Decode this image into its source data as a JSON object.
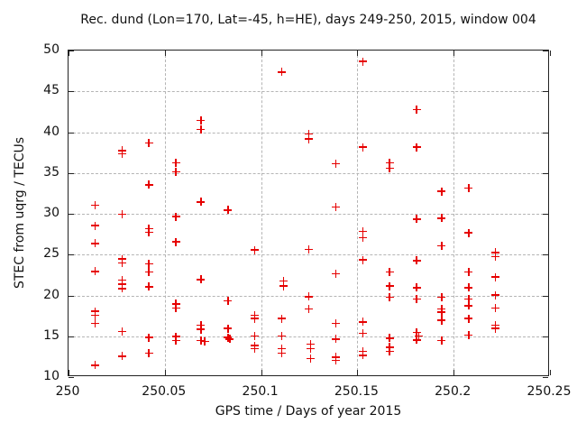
{
  "colors": {
    "marker": "#e60000",
    "grid": "#b5b5b5",
    "axis": "#222222",
    "text": "#111111",
    "background": "#ffffff"
  },
  "chart_data": {
    "type": "scatter",
    "title": "Rec. dund (Lon=170, Lat=-45, h=HE), days 249-250, 2015, window 004",
    "xlabel": "GPS time / Days of year 2015",
    "ylabel": "STEC from uqrg / TECUs",
    "xlim": [
      250,
      250.25
    ],
    "ylim": [
      10,
      50
    ],
    "xticks": [
      250,
      250.05,
      250.1,
      250.15,
      250.2,
      250.25
    ],
    "xtick_labels": [
      "250",
      "250.05",
      "250.1",
      "250.15",
      "250.2",
      "250.25"
    ],
    "yticks": [
      10,
      15,
      20,
      25,
      30,
      35,
      40,
      45,
      50
    ],
    "ytick_labels": [
      "10",
      "15",
      "20",
      "25",
      "30",
      "35",
      "40",
      "45",
      "50"
    ],
    "grid": true,
    "legend": "none",
    "marker": "plus",
    "series": [
      {
        "name": "STEC",
        "color": "#e60000",
        "points": [
          [
            250.014,
            31.0
          ],
          [
            250.014,
            28.5
          ],
          [
            250.014,
            26.3
          ],
          [
            250.014,
            22.9
          ],
          [
            250.014,
            18.0
          ],
          [
            250.014,
            17.5
          ],
          [
            250.014,
            16.5
          ],
          [
            250.014,
            11.4
          ],
          [
            250.028,
            37.7
          ],
          [
            250.028,
            37.3
          ],
          [
            250.028,
            29.9
          ],
          [
            250.028,
            24.4
          ],
          [
            250.028,
            23.9
          ],
          [
            250.028,
            21.8
          ],
          [
            250.028,
            21.3
          ],
          [
            250.028,
            20.8
          ],
          [
            250.028,
            15.5
          ],
          [
            250.028,
            12.5
          ],
          [
            250.042,
            38.6
          ],
          [
            250.042,
            33.5
          ],
          [
            250.042,
            28.1
          ],
          [
            250.042,
            27.7
          ],
          [
            250.042,
            23.8
          ],
          [
            250.042,
            22.8
          ],
          [
            250.042,
            21.0
          ],
          [
            250.042,
            14.8
          ],
          [
            250.042,
            12.9
          ],
          [
            250.056,
            36.2
          ],
          [
            250.056,
            35.1
          ],
          [
            250.056,
            29.6
          ],
          [
            250.056,
            26.5
          ],
          [
            250.056,
            18.9
          ],
          [
            250.056,
            18.4
          ],
          [
            250.056,
            14.9
          ],
          [
            250.056,
            14.4
          ],
          [
            250.069,
            41.4
          ],
          [
            250.069,
            40.3
          ],
          [
            250.069,
            31.4
          ],
          [
            250.069,
            21.9
          ],
          [
            250.069,
            16.3
          ],
          [
            250.069,
            15.8
          ],
          [
            250.069,
            14.4
          ],
          [
            250.071,
            14.3
          ],
          [
            250.083,
            30.4
          ],
          [
            250.083,
            19.3
          ],
          [
            250.083,
            15.9
          ],
          [
            250.083,
            14.8
          ],
          [
            250.084,
            14.6
          ],
          [
            250.097,
            25.5
          ],
          [
            250.097,
            17.5
          ],
          [
            250.097,
            17.1
          ],
          [
            250.097,
            15.0
          ],
          [
            250.097,
            13.8
          ],
          [
            250.097,
            13.4
          ],
          [
            250.111,
            47.3
          ],
          [
            250.112,
            21.7
          ],
          [
            250.112,
            21.1
          ],
          [
            250.111,
            17.1
          ],
          [
            250.111,
            15.0
          ],
          [
            250.111,
            13.4
          ],
          [
            250.111,
            12.9
          ],
          [
            250.125,
            39.7
          ],
          [
            250.125,
            39.1
          ],
          [
            250.125,
            25.6
          ],
          [
            250.125,
            19.8
          ],
          [
            250.125,
            18.3
          ],
          [
            250.126,
            14.0
          ],
          [
            250.126,
            13.4
          ],
          [
            250.126,
            12.2
          ],
          [
            250.139,
            36.1
          ],
          [
            250.139,
            30.8
          ],
          [
            250.139,
            22.6
          ],
          [
            250.139,
            16.5
          ],
          [
            250.139,
            14.6
          ],
          [
            250.139,
            12.4
          ],
          [
            250.139,
            12.0
          ],
          [
            250.153,
            48.6
          ],
          [
            250.153,
            38.1
          ],
          [
            250.153,
            27.8
          ],
          [
            250.153,
            27.0
          ],
          [
            250.153,
            24.3
          ],
          [
            250.153,
            16.7
          ],
          [
            250.153,
            15.3
          ],
          [
            250.153,
            13.1
          ],
          [
            250.153,
            12.6
          ],
          [
            250.167,
            36.2
          ],
          [
            250.167,
            35.5
          ],
          [
            250.167,
            22.8
          ],
          [
            250.167,
            21.1
          ],
          [
            250.167,
            19.7
          ],
          [
            250.167,
            14.7
          ],
          [
            250.167,
            13.6
          ],
          [
            250.167,
            13.1
          ],
          [
            250.181,
            42.7
          ],
          [
            250.181,
            38.1
          ],
          [
            250.181,
            29.3
          ],
          [
            250.181,
            24.2
          ],
          [
            250.181,
            20.9
          ],
          [
            250.181,
            19.5
          ],
          [
            250.181,
            15.4
          ],
          [
            250.182,
            15.0
          ],
          [
            250.181,
            14.5
          ],
          [
            250.194,
            32.7
          ],
          [
            250.194,
            29.4
          ],
          [
            250.194,
            26.0
          ],
          [
            250.194,
            19.7
          ],
          [
            250.194,
            18.3
          ],
          [
            250.194,
            17.9
          ],
          [
            250.194,
            16.9
          ],
          [
            250.194,
            14.4
          ],
          [
            250.208,
            33.1
          ],
          [
            250.208,
            27.6
          ],
          [
            250.208,
            22.8
          ],
          [
            250.208,
            20.9
          ],
          [
            250.208,
            19.5
          ],
          [
            250.208,
            18.7
          ],
          [
            250.208,
            17.1
          ],
          [
            250.208,
            15.1
          ],
          [
            250.222,
            25.2
          ],
          [
            250.222,
            24.7
          ],
          [
            250.222,
            22.2
          ],
          [
            250.222,
            20.0
          ],
          [
            250.222,
            18.4
          ],
          [
            250.222,
            16.3
          ],
          [
            250.222,
            15.9
          ]
        ]
      }
    ]
  }
}
